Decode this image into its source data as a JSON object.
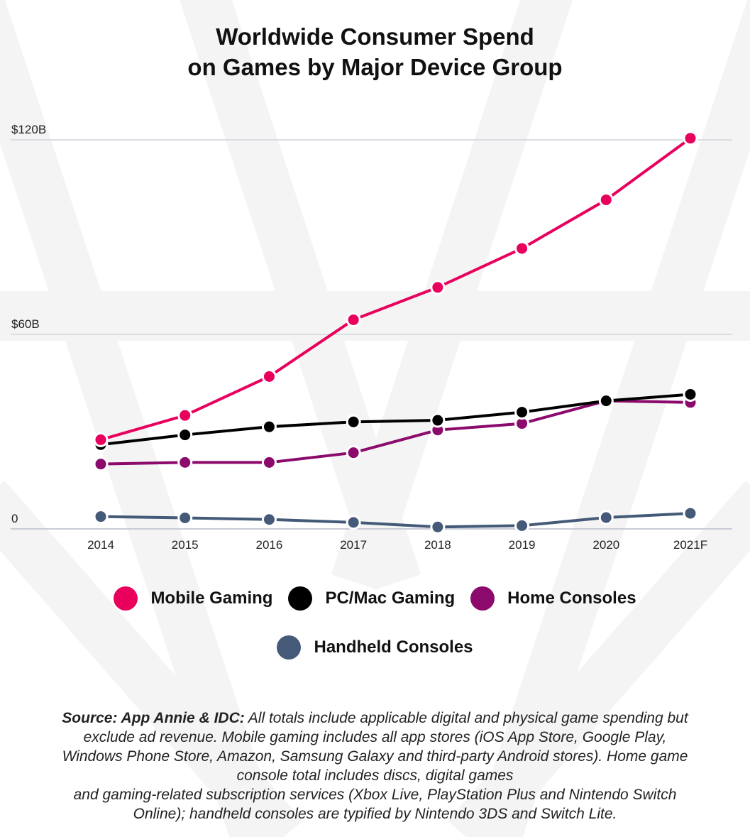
{
  "title_lines": [
    "Worldwide Consumer Spend",
    "on Games by Major Device Group"
  ],
  "chart_data": {
    "type": "line",
    "title": "Worldwide Consumer Spend on Games by Major Device Group",
    "categories": [
      "2014",
      "2015",
      "2016",
      "2017",
      "2018",
      "2019",
      "2020",
      "2021F"
    ],
    "y_tick_labels": [
      "0",
      "$60B",
      "$120B"
    ],
    "y_tick_values": [
      0,
      60,
      120
    ],
    "ylim": [
      0,
      120
    ],
    "ylabel": "",
    "xlabel": "",
    "grid": true,
    "legend_position": "bottom",
    "series": [
      {
        "name": "Mobile Gaming",
        "color": "#E8005C",
        "values": [
          27.5,
          35,
          47,
          64.5,
          74.5,
          86.5,
          101.5,
          120.5
        ]
      },
      {
        "name": "PC/Mac Gaming",
        "color": "#000000",
        "values": [
          26,
          29,
          31.5,
          33,
          33.5,
          36,
          39.5,
          41.5
        ]
      },
      {
        "name": "Home Consoles",
        "color": "#8B0A6B",
        "values": [
          20,
          20.5,
          20.5,
          23.5,
          30.5,
          32.5,
          39.5,
          39
        ]
      },
      {
        "name": "Handheld Consoles",
        "color": "#445A78",
        "values": [
          3.8,
          3.4,
          2.9,
          2.0,
          0.6,
          1.0,
          3.5,
          4.8
        ]
      }
    ]
  },
  "legend": {
    "row1": [
      "Mobile Gaming",
      "PC/Mac Gaming",
      "Home Consoles"
    ],
    "row2": [
      "Handheld Consoles"
    ]
  },
  "source": {
    "label": "Source: App Annie & IDC:",
    "lines": [
      "All totals include applicable digital and physical game spending but",
      "exclude ad revenue. Mobile gaming includes all app stores (iOS App Store, Google Play,",
      "Windows Phone Store, Amazon, Samsung Galaxy and third-party Android stores). Home game",
      "console total includes discs, digital games",
      "and gaming-related subscription services (Xbox Live, PlayStation Plus and Nintendo Switch",
      "Online); handheld consoles are typified by Nintendo 3DS and Switch Lite."
    ]
  }
}
